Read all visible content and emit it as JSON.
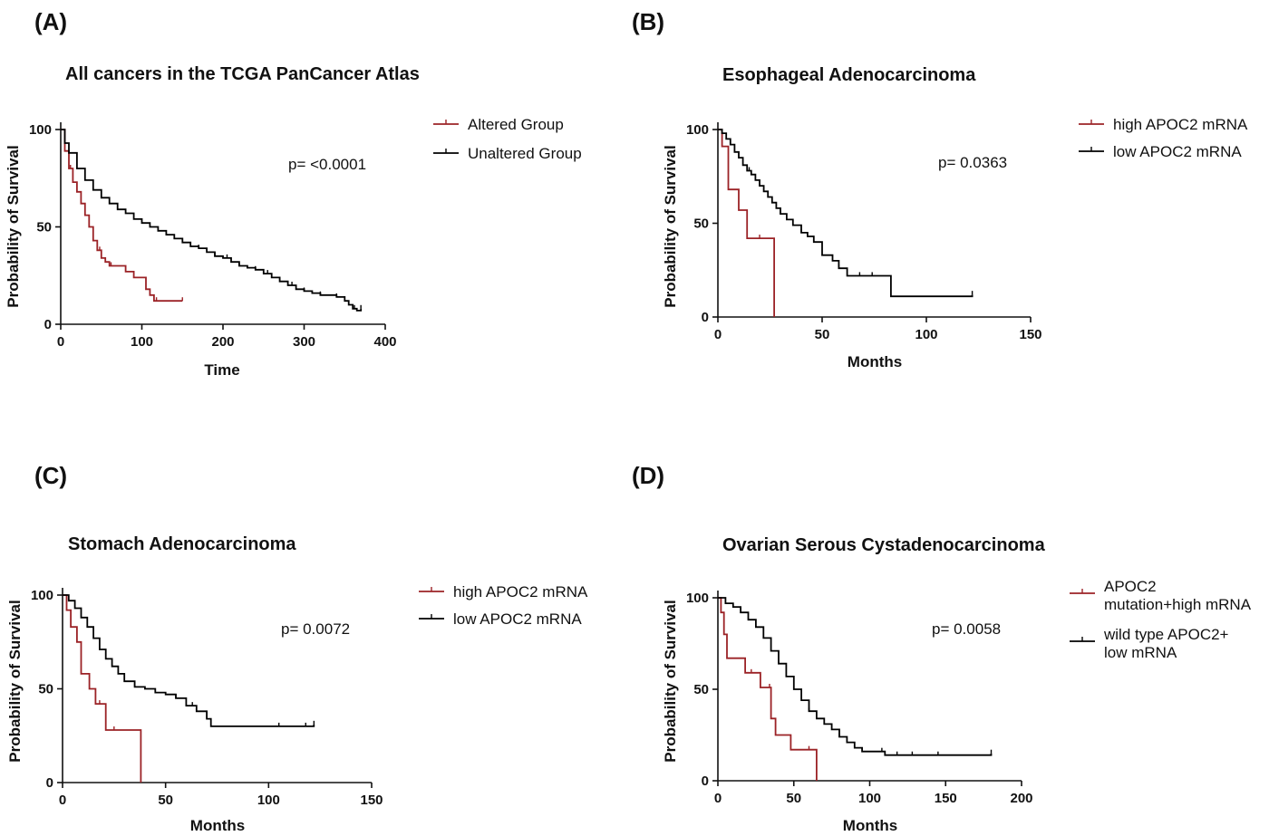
{
  "colors": {
    "altered": "#9b2226",
    "unaltered": "#000000"
  },
  "chart_data": [
    {
      "panel": "(A)",
      "type": "line",
      "title": "All cancers in the TCGA PanCancer Atlas",
      "xlabel": "Time",
      "ylabel": "Probability of Survival",
      "xlim": [
        0,
        400
      ],
      "ylim": [
        0,
        100
      ],
      "xticks": [
        0,
        100,
        200,
        300,
        400
      ],
      "yticks": [
        0,
        50,
        100
      ],
      "pvalue": "p=  <0.0001",
      "legend_position": "top-right",
      "series": [
        {
          "name": "Altered Group",
          "color": "#9b2226",
          "x": [
            0,
            5,
            10,
            15,
            20,
            25,
            30,
            35,
            40,
            45,
            50,
            55,
            60,
            70,
            80,
            90,
            100,
            105,
            110,
            115,
            150
          ],
          "y": [
            100,
            89,
            80,
            73,
            68,
            62,
            56,
            50,
            43,
            38,
            34,
            32,
            30,
            30,
            27,
            24,
            24,
            18,
            15,
            12,
            12
          ],
          "censor_x": [
            12,
            35,
            48,
            62,
            118,
            150
          ]
        },
        {
          "name": "Unaltered Group",
          "color": "#000000",
          "x": [
            0,
            5,
            10,
            20,
            30,
            40,
            50,
            60,
            70,
            80,
            90,
            100,
            110,
            120,
            130,
            140,
            150,
            160,
            170,
            180,
            190,
            200,
            210,
            220,
            230,
            240,
            250,
            260,
            270,
            280,
            290,
            300,
            310,
            320,
            330,
            340,
            350,
            355,
            360,
            365,
            370
          ],
          "y": [
            100,
            93,
            88,
            80,
            74,
            69,
            65,
            62,
            59,
            57,
            54,
            52,
            50,
            48,
            46,
            44,
            42,
            40,
            39,
            37,
            35,
            34,
            32,
            30,
            29,
            28,
            26,
            24,
            22,
            20,
            18,
            17,
            16,
            15,
            15,
            14,
            12,
            10,
            8,
            7,
            8
          ],
          "censor_x": [
            150,
            170,
            190,
            205,
            220,
            240,
            255,
            270,
            285,
            300,
            320,
            340,
            362,
            370
          ]
        }
      ]
    },
    {
      "panel": "(B)",
      "type": "line",
      "title": "Esophageal Adenocarcinoma",
      "xlabel": "Months",
      "ylabel": "Probability of Survival",
      "xlim": [
        0,
        150
      ],
      "ylim": [
        0,
        100
      ],
      "xticks": [
        0,
        50,
        100,
        150
      ],
      "yticks": [
        0,
        50,
        100
      ],
      "pvalue": "p=  0.0363",
      "legend_position": "top-right",
      "series": [
        {
          "name": "high APOC2 mRNA",
          "color": "#9b2226",
          "x": [
            0,
            2,
            5,
            10,
            14,
            20,
            26,
            27
          ],
          "y": [
            100,
            91,
            68,
            57,
            42,
            42,
            42,
            0
          ],
          "censor_x": [
            20
          ]
        },
        {
          "name": "low APOC2 mRNA",
          "color": "#000000",
          "x": [
            0,
            2,
            4,
            6,
            8,
            10,
            12,
            14,
            16,
            18,
            20,
            22,
            24,
            26,
            28,
            30,
            33,
            36,
            40,
            43,
            46,
            50,
            55,
            58,
            62,
            70,
            75,
            80,
            83,
            90,
            100,
            110,
            120,
            122
          ],
          "y": [
            100,
            98,
            95,
            92,
            88,
            85,
            81,
            78,
            76,
            73,
            70,
            67,
            64,
            61,
            58,
            55,
            52,
            49,
            45,
            43,
            40,
            33,
            30,
            26,
            22,
            22,
            22,
            22,
            11,
            11,
            11,
            11,
            11,
            12
          ],
          "censor_x": [
            15,
            30,
            40,
            58,
            68,
            74,
            122
          ]
        }
      ]
    },
    {
      "panel": "(C)",
      "type": "line",
      "title": "Stomach Adenocarcinoma",
      "xlabel": "Months",
      "ylabel": "Probability of Survival",
      "xlim": [
        0,
        150
      ],
      "ylim": [
        0,
        100
      ],
      "xticks": [
        0,
        50,
        100,
        150
      ],
      "yticks": [
        0,
        50,
        100
      ],
      "pvalue": "p=  0.0072",
      "legend_position": "top-right",
      "series": [
        {
          "name": "high APOC2 mRNA",
          "color": "#9b2226",
          "x": [
            0,
            2,
            4,
            7,
            9,
            13,
            16,
            18,
            21,
            25,
            30,
            38
          ],
          "y": [
            100,
            92,
            83,
            75,
            58,
            50,
            42,
            42,
            28,
            28,
            28,
            0
          ],
          "censor_x": [
            18,
            25
          ]
        },
        {
          "name": "low APOC2 mRNA",
          "color": "#000000",
          "x": [
            0,
            3,
            6,
            9,
            12,
            15,
            18,
            21,
            24,
            27,
            30,
            35,
            40,
            45,
            50,
            55,
            60,
            65,
            70,
            72,
            80,
            90,
            100,
            110,
            120,
            122
          ],
          "y": [
            100,
            97,
            93,
            88,
            83,
            77,
            71,
            66,
            62,
            58,
            54,
            51,
            50,
            48,
            47,
            45,
            41,
            38,
            34,
            30,
            30,
            30,
            30,
            30,
            30,
            31
          ],
          "censor_x": [
            35,
            45,
            55,
            63,
            70,
            105,
            118,
            122
          ]
        }
      ]
    },
    {
      "panel": "(D)",
      "type": "line",
      "title": "Ovarian Serous Cystadenocarcinoma",
      "xlabel": "Months",
      "ylabel": "Probability of Survival",
      "xlim": [
        0,
        200
      ],
      "ylim": [
        0,
        100
      ],
      "xticks": [
        0,
        50,
        100,
        150,
        200
      ],
      "yticks": [
        0,
        50,
        100
      ],
      "pvalue": "p=  0.0058",
      "legend_position": "top-right",
      "series": [
        {
          "name": "APOC2 mutation+high mRNA",
          "legend_lines": [
            "APOC2",
            "mutation+high mRNA"
          ],
          "color": "#9b2226",
          "x": [
            0,
            2,
            4,
            6,
            18,
            28,
            35,
            38,
            48,
            60,
            64,
            65
          ],
          "y": [
            100,
            92,
            80,
            67,
            59,
            51,
            34,
            25,
            17,
            17,
            17,
            0
          ],
          "censor_x": [
            22,
            34,
            60
          ]
        },
        {
          "name": "wild type APOC2+ low mRNA",
          "legend_lines": [
            "wild type APOC2+",
            "low mRNA"
          ],
          "color": "#000000",
          "x": [
            0,
            5,
            10,
            15,
            20,
            25,
            30,
            35,
            40,
            45,
            50,
            55,
            60,
            65,
            70,
            75,
            80,
            85,
            90,
            95,
            100,
            110,
            120,
            140,
            160,
            180
          ],
          "y": [
            100,
            97,
            95,
            92,
            88,
            84,
            78,
            71,
            64,
            57,
            50,
            44,
            38,
            34,
            31,
            28,
            24,
            21,
            18,
            16,
            16,
            14,
            14,
            14,
            14,
            15
          ],
          "censor_x": [
            60,
            70,
            80,
            95,
            108,
            118,
            128,
            145,
            180
          ]
        }
      ]
    }
  ]
}
